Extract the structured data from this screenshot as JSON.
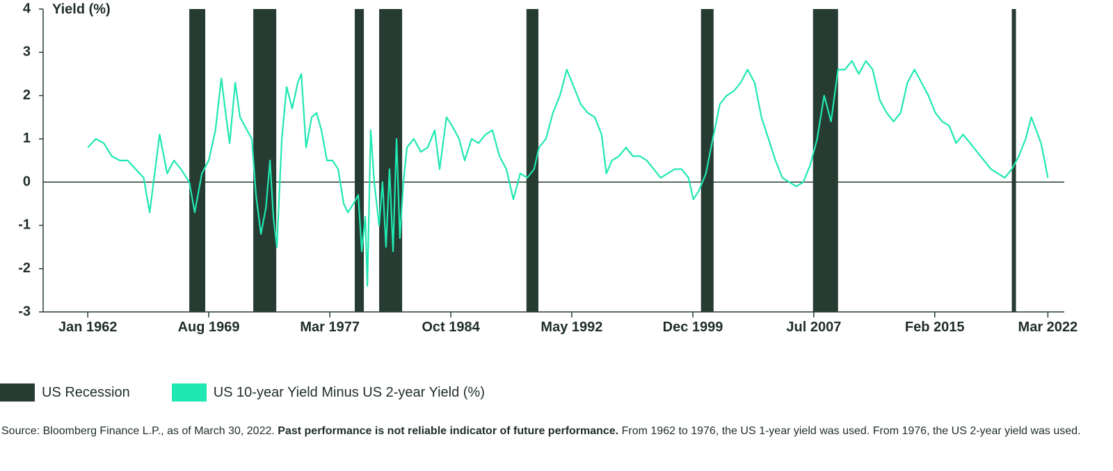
{
  "chart_data": {
    "type": "line",
    "title": "Yield (%)",
    "x": [
      1962.0,
      1962.5,
      1963.0,
      1963.5,
      1964.0,
      1964.5,
      1965.0,
      1965.5,
      1965.88,
      1966.5,
      1966.97,
      1967.4,
      1967.84,
      1968.36,
      1968.7,
      1969.15,
      1969.58,
      1970.0,
      1970.37,
      1970.67,
      1970.89,
      1971.24,
      1971.54,
      1971.98,
      1972.28,
      1972.54,
      1972.85,
      1973.16,
      1973.42,
      1973.63,
      1973.85,
      1974.16,
      1974.46,
      1974.81,
      1975.16,
      1975.38,
      1975.68,
      1976.03,
      1976.34,
      1976.64,
      1976.99,
      1977.34,
      1977.69,
      1978.04,
      1978.3,
      1978.65,
      1978.95,
      1979.17,
      1979.39,
      1979.52,
      1979.73,
      1979.95,
      1980.26,
      1980.47,
      1980.69,
      1980.91,
      1981.13,
      1981.35,
      1981.56,
      1981.78,
      1982.0,
      1982.43,
      1982.87,
      1983.3,
      1983.74,
      1984.05,
      1984.48,
      1984.83,
      1985.27,
      1985.62,
      1986.05,
      1986.49,
      1986.92,
      1987.36,
      1987.8,
      1988.23,
      1988.67,
      1989.1,
      1989.54,
      1989.97,
      1990.28,
      1990.71,
      1991.15,
      1991.59,
      1992.02,
      1992.46,
      1992.89,
      1993.33,
      1993.77,
      1994.2,
      1994.5,
      1994.85,
      1995.29,
      1995.73,
      1996.16,
      1996.6,
      1997.03,
      1997.47,
      1997.9,
      1998.34,
      1998.78,
      1999.21,
      1999.65,
      1999.95,
      2000.3,
      2000.74,
      2001.17,
      2001.61,
      2002.04,
      2002.48,
      2002.92,
      2003.35,
      2003.79,
      2004.22,
      2004.66,
      2005.1,
      2005.53,
      2005.97,
      2006.4,
      2006.84,
      2007.28,
      2007.71,
      2008.15,
      2008.58,
      2009.02,
      2009.45,
      2009.89,
      2010.32,
      2010.76,
      2011.19,
      2011.63,
      2012.07,
      2012.5,
      2012.94,
      2013.37,
      2013.81,
      2014.25,
      2014.68,
      2015.12,
      2015.55,
      2015.99,
      2016.42,
      2016.86,
      2017.3,
      2017.73,
      2018.17,
      2018.6,
      2019.04,
      2019.47,
      2019.91,
      2020.35,
      2020.78,
      2021.13,
      2021.44,
      2021.74,
      2021.96,
      2022.17
    ],
    "series": [
      {
        "name": "US 10-year Yield Minus US 2-year Yield (%)",
        "color": "#1fe8b2",
        "values": [
          0.8,
          1.0,
          0.9,
          0.6,
          0.5,
          0.5,
          0.3,
          0.1,
          -0.7,
          1.1,
          0.2,
          0.5,
          0.3,
          0.0,
          -0.7,
          0.2,
          0.5,
          1.2,
          2.4,
          1.5,
          0.9,
          2.3,
          1.5,
          1.2,
          1.0,
          -0.3,
          -1.2,
          -0.6,
          0.5,
          -0.8,
          -1.5,
          1.0,
          2.2,
          1.7,
          2.3,
          2.5,
          0.8,
          1.5,
          1.6,
          1.2,
          0.5,
          0.5,
          0.3,
          -0.5,
          -0.7,
          -0.5,
          -0.3,
          -1.6,
          -0.8,
          -2.4,
          1.2,
          0.0,
          -1.0,
          0.0,
          -1.5,
          0.3,
          -1.6,
          1.0,
          -1.3,
          0.0,
          0.8,
          1.0,
          0.7,
          0.8,
          1.2,
          0.3,
          1.5,
          1.3,
          1.0,
          0.5,
          1.0,
          0.9,
          1.1,
          1.2,
          0.6,
          0.3,
          -0.4,
          0.2,
          0.1,
          0.3,
          0.8,
          1.0,
          1.6,
          2.0,
          2.6,
          2.2,
          1.8,
          1.6,
          1.5,
          1.1,
          0.2,
          0.5,
          0.6,
          0.8,
          0.6,
          0.6,
          0.5,
          0.3,
          0.1,
          0.2,
          0.3,
          0.3,
          0.1,
          -0.4,
          -0.2,
          0.2,
          1.0,
          1.8,
          2.0,
          2.1,
          2.3,
          2.6,
          2.3,
          1.5,
          1.0,
          0.5,
          0.1,
          0.0,
          -0.1,
          0.0,
          0.4,
          1.0,
          2.0,
          1.4,
          2.6,
          2.6,
          2.8,
          2.5,
          2.8,
          2.6,
          1.9,
          1.6,
          1.4,
          1.6,
          2.3,
          2.6,
          2.3,
          2.0,
          1.6,
          1.4,
          1.3,
          0.9,
          1.1,
          0.9,
          0.7,
          0.5,
          0.3,
          0.2,
          0.1,
          0.3,
          0.6,
          1.0,
          1.5,
          1.2,
          0.9,
          0.5,
          0.1
        ]
      }
    ],
    "recessions": {
      "name": "US Recession",
      "color": "#263b31",
      "periods": [
        [
          1968.36,
          1969.36
        ],
        [
          1972.37,
          1973.81
        ],
        [
          1978.73,
          1979.3
        ],
        [
          1980.26,
          1981.7
        ],
        [
          1989.49,
          1990.24
        ],
        [
          2000.43,
          2001.22
        ],
        [
          2007.45,
          2009.02
        ],
        [
          2019.91,
          2020.17
        ]
      ]
    },
    "xlim": [
      1959.2,
      2023.2
    ],
    "xticks": [
      {
        "value": 1962.0,
        "label": "Jan 1962"
      },
      {
        "value": 1969.58,
        "label": "Aug 1969"
      },
      {
        "value": 1977.17,
        "label": "Mar 1977"
      },
      {
        "value": 1984.75,
        "label": "Oct 1984"
      },
      {
        "value": 1992.33,
        "label": "May 1992"
      },
      {
        "value": 1999.92,
        "label": "Dec 1999"
      },
      {
        "value": 2007.5,
        "label": "Jul 2007"
      },
      {
        "value": 2015.08,
        "label": "Feb 2015"
      },
      {
        "value": 2022.17,
        "label": "Mar 2022"
      }
    ],
    "ylim": [
      -3,
      4
    ],
    "yticks": [
      -3,
      -2,
      -1,
      0,
      1,
      2,
      3,
      4
    ],
    "legend": "bottom-left"
  },
  "footnote": [
    "Source: Bloomberg Finance L.P., as of March 30, 2022.",
    "Past performance is not reliable indicator of future performance.",
    "From 1962 to 1976, the US 1-year yield was used. From 1976, the US 2-year yield was used."
  ]
}
